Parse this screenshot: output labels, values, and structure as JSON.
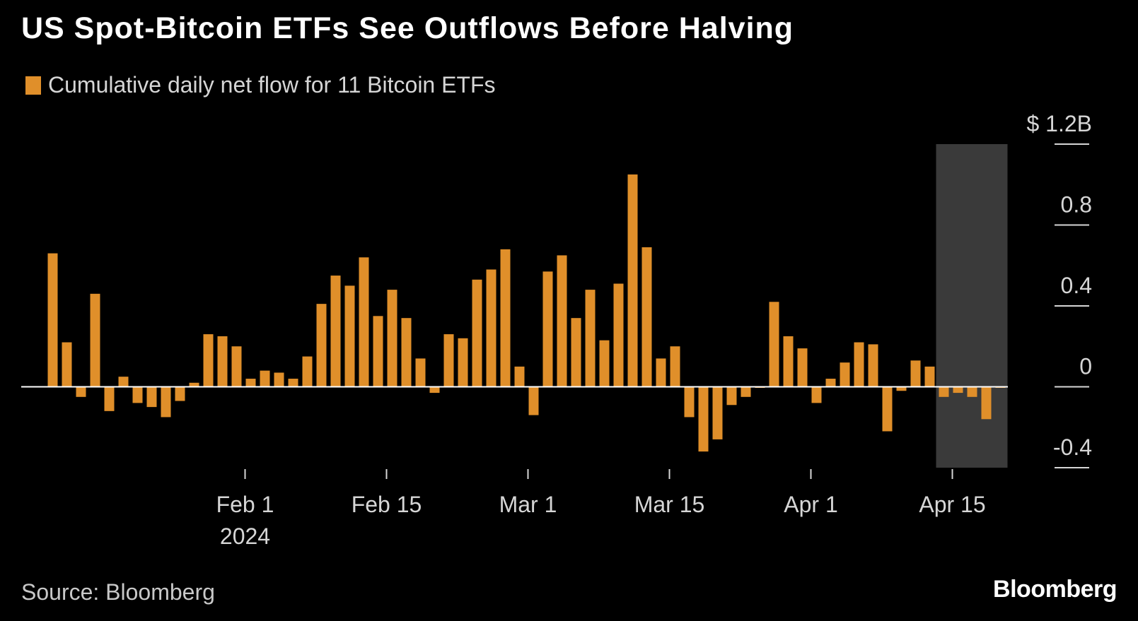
{
  "header": {
    "title": "US Spot-Bitcoin ETFs See Outflows Before Halving"
  },
  "footer": {
    "source": "Source: Bloomberg",
    "brand": "Bloomberg"
  },
  "colors": {
    "bar": "#e08f2a",
    "highlight": "#3a3a3a",
    "zero_line": "#ffffff",
    "axis_text": "#d6d6d6"
  },
  "chart_data": {
    "type": "bar",
    "title": "US Spot-Bitcoin ETFs See Outflows Before Halving",
    "series": [
      {
        "name": "Cumulative daily net flow for 11 Bitcoin ETFs",
        "values": [
          0.66,
          0.22,
          -0.05,
          0.46,
          -0.12,
          0.05,
          -0.08,
          -0.1,
          -0.15,
          -0.07,
          0.02,
          0.26,
          0.25,
          0.2,
          0.04,
          0.08,
          0.07,
          0.04,
          0.15,
          0.41,
          0.55,
          0.5,
          0.64,
          0.35,
          0.48,
          0.34,
          0.14,
          -0.03,
          0.26,
          0.24,
          0.53,
          0.58,
          0.68,
          0.1,
          -0.14,
          0.57,
          0.65,
          0.34,
          0.48,
          0.23,
          0.51,
          1.05,
          0.69,
          0.14,
          0.2,
          -0.15,
          -0.32,
          -0.26,
          -0.09,
          -0.05,
          0.0,
          0.42,
          0.25,
          0.19,
          -0.08,
          0.04,
          0.12,
          0.22,
          0.21,
          -0.22,
          -0.02,
          0.13,
          0.1,
          -0.05,
          -0.03,
          -0.05,
          -0.16,
          0.0
        ]
      }
    ],
    "ylim": [
      -0.4,
      1.2
    ],
    "yticks": [
      {
        "value": 1.2,
        "label": "$ 1.2B"
      },
      {
        "value": 0.8,
        "label": "0.8"
      },
      {
        "value": 0.4,
        "label": "0.4"
      },
      {
        "value": 0,
        "label": "0"
      },
      {
        "value": -0.4,
        "label": "-0.4"
      }
    ],
    "xticks": [
      {
        "index": 14,
        "label": "Feb 1",
        "sublabel": "2024"
      },
      {
        "index": 24,
        "label": "Feb 15",
        "sublabel": ""
      },
      {
        "index": 34,
        "label": "Mar 1",
        "sublabel": ""
      },
      {
        "index": 44,
        "label": "Mar 15",
        "sublabel": ""
      },
      {
        "index": 54,
        "label": "Apr 1",
        "sublabel": ""
      },
      {
        "index": 64,
        "label": "Apr 15",
        "sublabel": ""
      }
    ],
    "highlight": {
      "start_index": 63,
      "end_index": 67
    },
    "xlabel": "",
    "ylabel": "",
    "legend": "top-left",
    "grid": false
  }
}
